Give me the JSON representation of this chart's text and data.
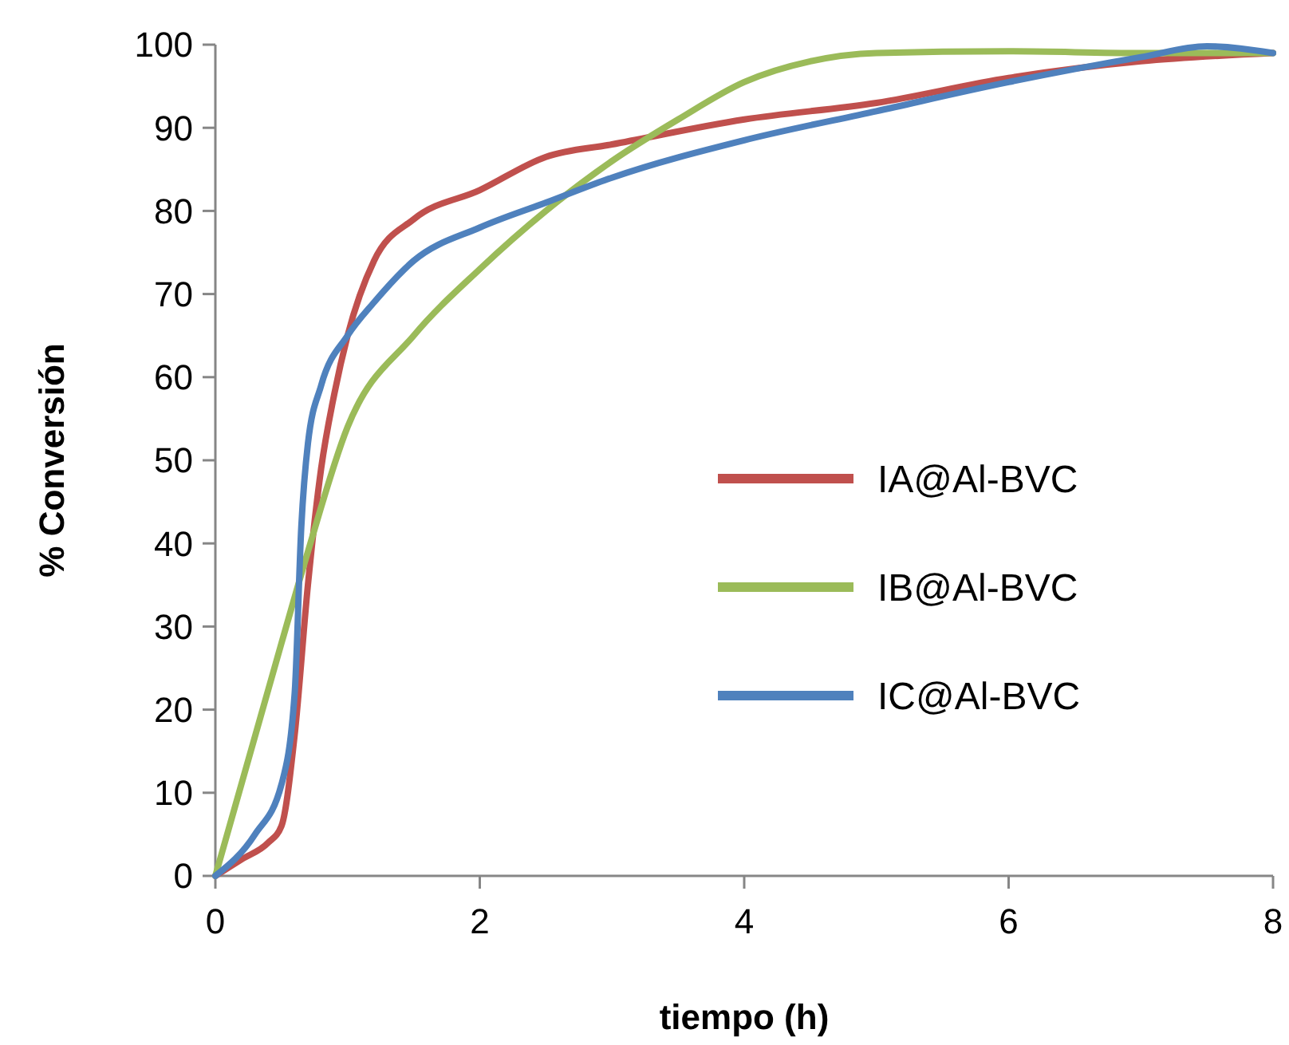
{
  "chart_data": {
    "type": "line",
    "xlabel": "tiempo (h)",
    "ylabel": "% Conversión",
    "xlim": [
      0,
      8
    ],
    "ylim": [
      0,
      100
    ],
    "xticks": [
      0,
      2,
      4,
      6,
      8
    ],
    "yticks": [
      0,
      10,
      20,
      30,
      40,
      50,
      60,
      70,
      80,
      90,
      100
    ],
    "grid": false,
    "legend": "right",
    "marker": "none",
    "line_style": "solid",
    "series": [
      {
        "name": "IA@Al-BVC",
        "color": "#c0504d",
        "x": [
          0,
          0.2,
          0.4,
          0.5,
          0.6,
          0.7,
          0.8,
          0.9,
          1,
          1.2,
          1.5,
          2,
          2.5,
          3,
          4,
          5,
          6,
          7,
          8
        ],
        "values": [
          0,
          2,
          4,
          6,
          17,
          35,
          49,
          58,
          65,
          74,
          79,
          82.5,
          86.5,
          88,
          91,
          93,
          96,
          98,
          99
        ]
      },
      {
        "name": "IB@Al-BVC",
        "color": "#9bbb59",
        "x": [
          0,
          0.5,
          0.7,
          1,
          1.5,
          2,
          2.5,
          3,
          3.5,
          4,
          4.5,
          5,
          6,
          7,
          8
        ],
        "values": [
          0,
          28,
          39,
          54,
          65,
          73,
          80,
          86,
          91,
          95.5,
          98,
          99,
          99.2,
          99,
          99
        ]
      },
      {
        "name": "IC@Al-BVC",
        "color": "#4f81bd",
        "x": [
          0,
          0.3,
          0.5,
          0.6,
          0.65,
          0.7,
          0.8,
          1,
          1.2,
          1.5,
          2,
          2.5,
          3,
          4,
          5,
          6,
          7,
          7.5,
          8
        ],
        "values": [
          0,
          5,
          11,
          22,
          42,
          52,
          59,
          65,
          69,
          74,
          78,
          81,
          84,
          88.5,
          92,
          95.5,
          98.5,
          99.8,
          99
        ]
      }
    ]
  }
}
